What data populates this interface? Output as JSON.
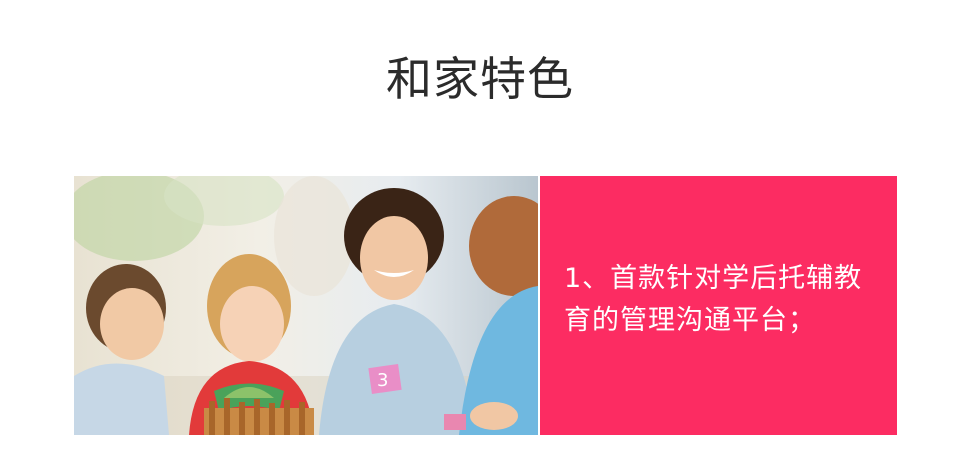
{
  "page": {
    "title": "和家特色"
  },
  "feature": {
    "text": "1、首款针对学后托辅教育的管理沟通平台；",
    "panel_color": "#fc2c62"
  },
  "photo": {
    "subject": "teacher-with-children-playing"
  }
}
